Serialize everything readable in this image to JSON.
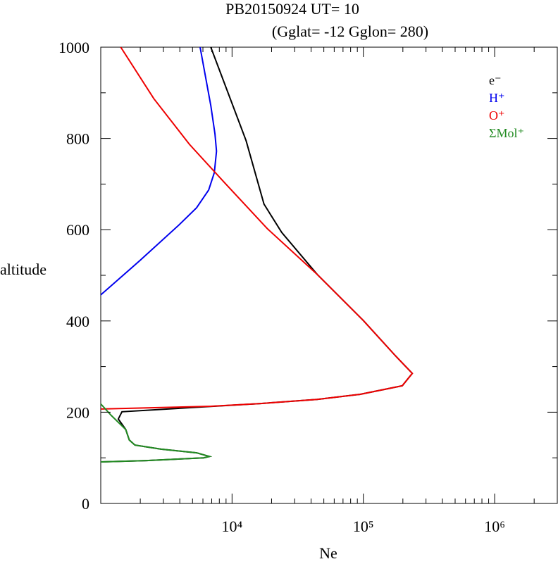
{
  "chart_data": {
    "type": "line",
    "title": "PB20150924   UT=  10",
    "subtitle": "(Gglat= -12   Gglon=  280)",
    "x_label": "Ne",
    "y_label": "altitude",
    "log_x": true,
    "xlim": [
      1000,
      3000000
    ],
    "xticks": [
      {
        "value": 10000,
        "label": "10⁴"
      },
      {
        "value": 100000,
        "label": "10⁵"
      },
      {
        "value": 1000000,
        "label": "10⁶"
      }
    ],
    "ylim": [
      0,
      1000
    ],
    "yticks": [
      0,
      200,
      400,
      600,
      800,
      1000
    ],
    "legend": "upper right",
    "series": [
      {
        "name": "e⁻",
        "color": "#000000",
        "x": [
          6890,
          12800,
          17500,
          23900,
          44500,
          100000,
          175000,
          236000,
          198000,
          145000,
          94000,
          44500,
          16500,
          3700,
          1450,
          1360,
          1550,
          1650,
          1820,
          2880,
          5370,
          6720,
          6080,
          2240,
          980
        ],
        "y": [
          1000,
          795,
          656,
          594,
          502,
          401,
          324,
          285,
          258,
          250,
          239,
          228,
          219,
          208,
          201,
          185,
          162,
          139,
          128,
          119,
          111,
          103,
          100,
          94,
          91
        ]
      },
      {
        "name": "H⁺",
        "color": "#0000ee",
        "x": [
          5710,
          6890,
          7410,
          7610,
          7330,
          6640,
          5370,
          3930,
          1980,
          980
        ],
        "y": [
          1000,
          872,
          810,
          772,
          725,
          687,
          648,
          610,
          532,
          455
        ]
      },
      {
        "name": "O⁺",
        "color": "#ee0000",
        "x": [
          1420,
          2540,
          4740,
          8830,
          18600,
          44500,
          100000,
          175000,
          236000,
          198000,
          145000,
          94000,
          44500,
          16500,
          6890,
          980
        ],
        "y": [
          1000,
          887,
          787,
          702,
          602,
          502,
          401,
          324,
          285,
          258,
          250,
          239,
          228,
          219,
          213,
          207
        ]
      },
      {
        "name": "ΣMol⁺",
        "color": "#228b22",
        "x": [
          980,
          1200,
          1550,
          1650,
          1820,
          2880,
          5370,
          6720,
          6080,
          2240,
          980
        ],
        "y": [
          221,
          193,
          162,
          139,
          128,
          119,
          111,
          103,
          100,
          94,
          91
        ]
      }
    ]
  }
}
